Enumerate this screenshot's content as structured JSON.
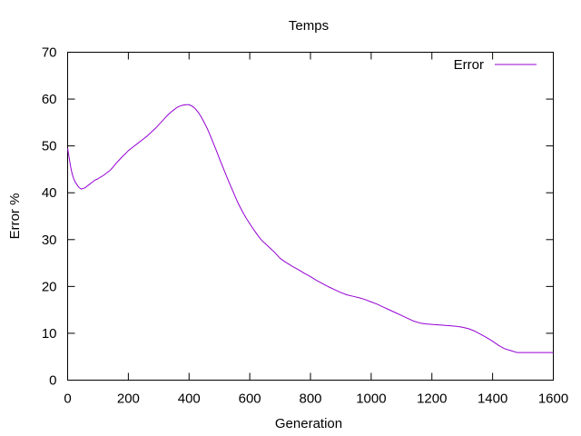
{
  "chart_data": {
    "type": "line",
    "title": "Temps",
    "xlabel": "Generation",
    "ylabel": "Error %",
    "xlim": [
      0,
      1600
    ],
    "ylim": [
      0,
      70
    ],
    "xticks": [
      0,
      200,
      400,
      600,
      800,
      1000,
      1200,
      1400,
      1600
    ],
    "yticks": [
      0,
      10,
      20,
      30,
      40,
      50,
      60,
      70
    ],
    "grid": false,
    "legend": "top-right",
    "series": [
      {
        "name": "Error",
        "color": "#9400d3",
        "x": [
          0,
          5,
          10,
          15,
          20,
          25,
          30,
          35,
          40,
          45,
          50,
          55,
          60,
          70,
          80,
          90,
          100,
          110,
          120,
          130,
          140,
          150,
          160,
          170,
          180,
          190,
          200,
          210,
          220,
          230,
          240,
          250,
          260,
          270,
          280,
          290,
          300,
          310,
          320,
          330,
          340,
          350,
          360,
          370,
          380,
          390,
          400,
          410,
          420,
          430,
          440,
          450,
          460,
          470,
          480,
          490,
          500,
          510,
          520,
          530,
          540,
          550,
          560,
          570,
          580,
          590,
          600,
          610,
          620,
          630,
          640,
          650,
          660,
          670,
          680,
          690,
          700,
          720,
          740,
          760,
          780,
          800,
          820,
          840,
          860,
          880,
          900,
          920,
          940,
          960,
          980,
          1000,
          1020,
          1040,
          1060,
          1080,
          1100,
          1120,
          1140,
          1160,
          1180,
          1200,
          1220,
          1240,
          1260,
          1280,
          1300,
          1320,
          1340,
          1360,
          1380,
          1400,
          1420,
          1440,
          1460,
          1480,
          1500,
          1520,
          1540,
          1560,
          1580,
          1600
        ],
        "values": [
          49.5,
          47.5,
          45.5,
          44,
          43,
          42.3,
          41.8,
          41.3,
          41,
          40.8,
          40.9,
          41,
          41.2,
          41.7,
          42.2,
          42.7,
          43,
          43.4,
          43.8,
          44.3,
          44.8,
          45.5,
          46.3,
          47,
          47.7,
          48.3,
          49,
          49.5,
          50,
          50.5,
          51,
          51.5,
          52,
          52.6,
          53.2,
          53.8,
          54.5,
          55.2,
          55.9,
          56.6,
          57.2,
          57.7,
          58.2,
          58.5,
          58.7,
          58.8,
          58.8,
          58.5,
          58,
          57.2,
          56.2,
          55,
          53.7,
          52.2,
          50.6,
          49,
          47.3,
          45.7,
          44.1,
          42.5,
          41,
          39.5,
          38,
          36.7,
          35.5,
          34.4,
          33.4,
          32.4,
          31.5,
          30.6,
          29.8,
          29.2,
          28.6,
          28,
          27.4,
          26.7,
          26,
          25.1,
          24.3,
          23.6,
          22.8,
          22.1,
          21.3,
          20.6,
          19.9,
          19.3,
          18.7,
          18.2,
          17.9,
          17.6,
          17.2,
          16.7,
          16.2,
          15.6,
          15,
          14.4,
          13.8,
          13.2,
          12.6,
          12.2,
          12,
          11.9,
          11.8,
          11.7,
          11.6,
          11.5,
          11.3,
          11,
          10.5,
          9.8,
          9.1,
          8.3,
          7.4,
          6.7,
          6.3,
          5.9,
          5.9,
          5.9,
          5.9,
          5.9,
          5.9,
          5.9
        ]
      }
    ]
  }
}
